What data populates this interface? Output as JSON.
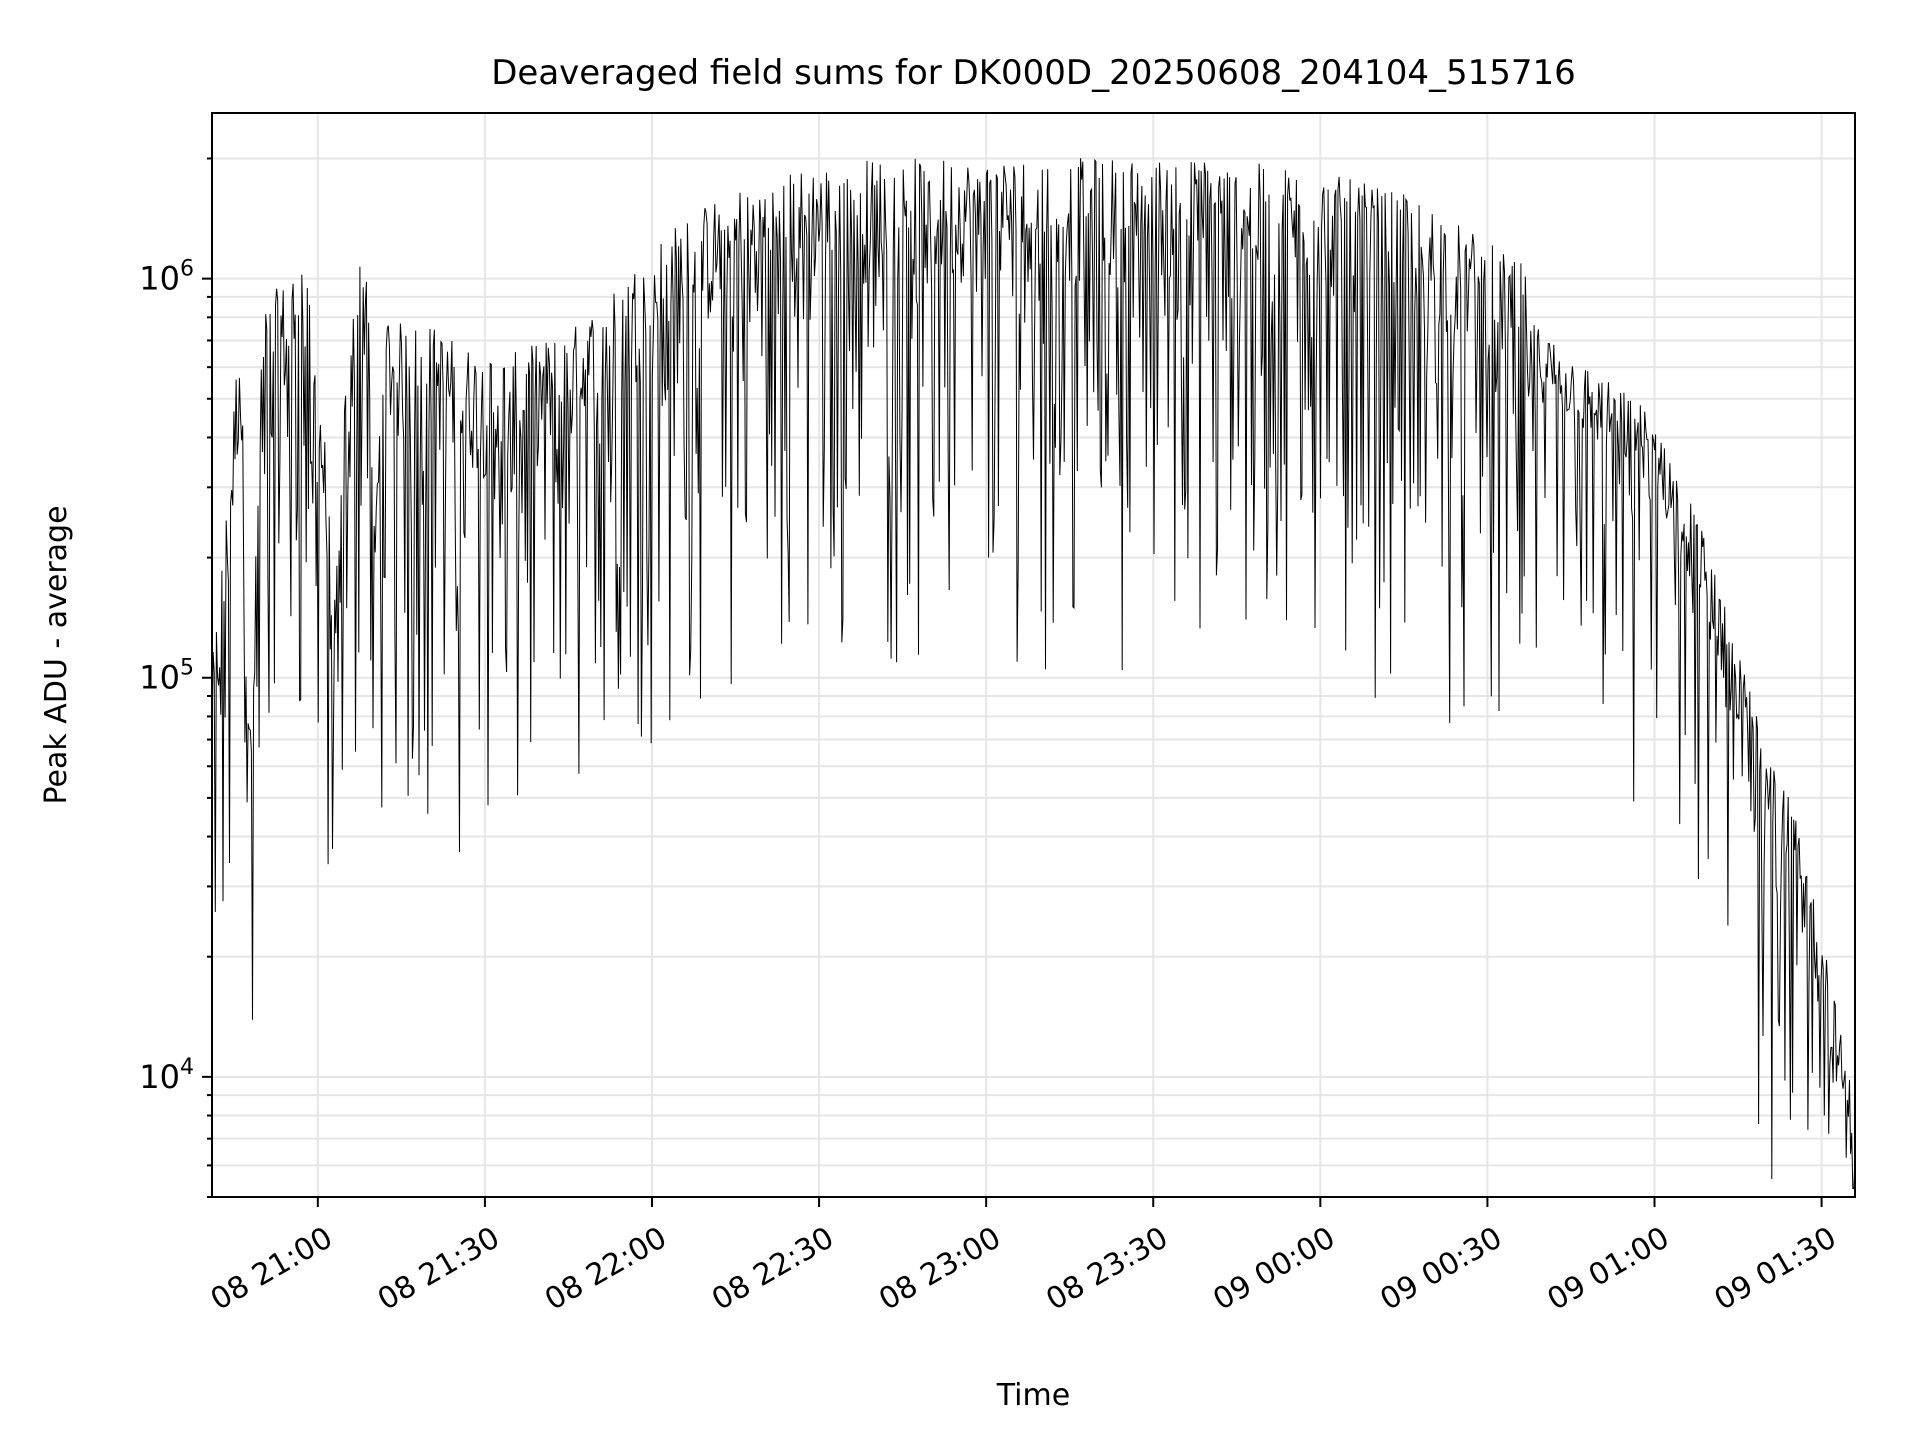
{
  "chart_data": {
    "type": "line",
    "title": "Deaveraged field sums for DK000D_20250608_204104_515716",
    "xlabel": "Time",
    "ylabel": "Peak ADU - average",
    "yscale": "log",
    "ylim": [
      5000,
      2600000
    ],
    "xlim": [
      "2025-06-08 20:41:00",
      "2025-06-09 01:36:00"
    ],
    "grid": true,
    "line_color": "#000000",
    "grid_color": "#e6e6e6",
    "x_ticks": [
      {
        "value": "2025-06-08 21:00",
        "label": "08 21:00"
      },
      {
        "value": "2025-06-08 21:30",
        "label": "08 21:30"
      },
      {
        "value": "2025-06-08 22:00",
        "label": "08 22:00"
      },
      {
        "value": "2025-06-08 22:30",
        "label": "08 22:30"
      },
      {
        "value": "2025-06-08 23:00",
        "label": "08 23:00"
      },
      {
        "value": "2025-06-08 23:30",
        "label": "08 23:30"
      },
      {
        "value": "2025-06-09 00:00",
        "label": "09 00:00"
      },
      {
        "value": "2025-06-09 00:30",
        "label": "09 00:30"
      },
      {
        "value": "2025-06-09 01:00",
        "label": "09 01:00"
      },
      {
        "value": "2025-06-09 01:30",
        "label": "09 01:30"
      }
    ],
    "y_ticks": [
      {
        "value": 10000,
        "base": "10",
        "exp": "4"
      },
      {
        "value": 100000,
        "base": "10",
        "exp": "5"
      },
      {
        "value": 1000000,
        "base": "10",
        "exp": "6"
      }
    ],
    "series": [
      {
        "x": [
          "2025-06-08 20:41",
          "2025-06-08 20:44",
          "2025-06-08 20:46",
          "2025-06-08 20:47",
          "2025-06-08 20:48",
          "2025-06-08 20:50",
          "2025-06-08 20:52",
          "2025-06-08 20:55",
          "2025-06-08 20:57",
          "2025-06-08 20:59",
          "2025-06-08 21:01",
          "2025-06-08 21:03",
          "2025-06-08 21:05",
          "2025-06-08 21:07",
          "2025-06-08 21:09",
          "2025-06-08 21:10",
          "2025-06-08 21:12",
          "2025-06-08 21:15",
          "2025-06-08 21:20",
          "2025-06-08 21:25",
          "2025-06-08 21:30",
          "2025-06-08 21:35",
          "2025-06-08 21:40",
          "2025-06-08 21:45",
          "2025-06-08 21:50",
          "2025-06-08 21:55",
          "2025-06-08 22:00",
          "2025-06-08 22:05",
          "2025-06-08 22:10",
          "2025-06-08 22:15",
          "2025-06-08 22:20",
          "2025-06-08 22:25",
          "2025-06-08 22:30",
          "2025-06-08 22:40",
          "2025-06-08 22:50",
          "2025-06-08 23:00",
          "2025-06-08 23:10",
          "2025-06-08 23:20",
          "2025-06-08 23:30",
          "2025-06-08 23:40",
          "2025-06-08 23:50",
          "2025-06-09 00:00",
          "2025-06-09 00:10",
          "2025-06-09 00:20",
          "2025-06-09 00:30",
          "2025-06-09 00:40",
          "2025-06-09 00:50",
          "2025-06-09 00:55",
          "2025-06-09 01:00",
          "2025-06-09 01:05",
          "2025-06-09 01:10",
          "2025-06-09 01:15",
          "2025-06-09 01:20",
          "2025-06-09 01:25",
          "2025-06-09 01:30",
          "2025-06-09 01:33",
          "2025-06-09 01:36"
        ],
        "y": [
          70000,
          200000,
          550000,
          150000,
          45000,
          550000,
          600000,
          650000,
          800000,
          500000,
          300000,
          100000,
          350000,
          700000,
          800000,
          150000,
          550000,
          500000,
          500000,
          450000,
          420000,
          420000,
          450000,
          480000,
          550000,
          650000,
          800000,
          900000,
          1000000,
          1100000,
          1150000,
          1200000,
          1250000,
          1300000,
          1300000,
          1300000,
          1300000,
          1300000,
          1300000,
          1300000,
          1250000,
          1200000,
          1100000,
          1000000,
          800000,
          650000,
          500000,
          450000,
          400000,
          280000,
          180000,
          100000,
          65000,
          40000,
          22000,
          12000,
          7500
        ]
      }
    ]
  }
}
